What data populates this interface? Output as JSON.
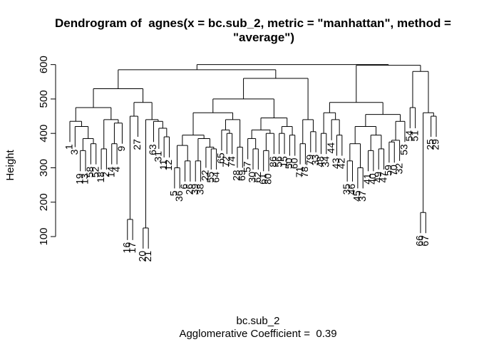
{
  "chart_data": {
    "type": "dendrogram",
    "title": [
      "Dendrogram of  agnes(x = bc.sub_2, metric = \"manhattan\", method =",
      "\"average\")"
    ],
    "x_label": "bc.sub_2",
    "subtitle": "Agglomerative Coefficient =  0.39",
    "y_label": "Height",
    "ylim": [
      40,
      620
    ],
    "yticks": [
      100,
      200,
      300,
      400,
      500,
      600
    ],
    "color": "#000000",
    "tree": {
      "height": 600,
      "children": [
        {
          "height": 585,
          "children": [
            {
              "height": 530,
              "children": [
                {
                  "height": 475,
                  "children": [
                    {
                      "height": 435,
                      "children": [
                        "1",
                        {
                          "height": 420,
                          "children": [
                            "3",
                            {
                              "height": 385,
                              "children": [
                                {
                                  "height": 350,
                                  "children": [
                                    "19",
                                    "13"
                                  ]
                                },
                                {
                                  "height": 370,
                                  "children": [
                                    "58",
                                    "52"
                                  ]
                                }
                              ]
                            }
                          ]
                        }
                      ]
                    },
                    {
                      "height": 440,
                      "children": [
                        {
                          "height": 355,
                          "children": [
                            "18",
                            "2"
                          ]
                        },
                        {
                          "height": 430,
                          "children": [
                            {
                              "height": 370,
                              "children": [
                                "14",
                                "4"
                              ]
                            },
                            "9"
                          ]
                        }
                      ]
                    }
                  ]
                },
                {
                  "height": 490,
                  "children": [
                    {
                      "height": 450,
                      "children": [
                        {
                          "height": 150,
                          "children": [
                            "16",
                            "17"
                          ]
                        },
                        "27"
                      ]
                    },
                    {
                      "height": 440,
                      "children": [
                        {
                          "height": 125,
                          "children": [
                            "20",
                            "21"
                          ]
                        },
                        {
                          "height": 435,
                          "children": [
                            "63",
                            {
                              "height": 415,
                              "children": [
                                "31",
                                {
                                  "height": 390,
                                  "children": [
                                    "11",
                                    "12"
                                  ]
                                }
                              ]
                            }
                          ]
                        }
                      ]
                    }
                  ]
                }
              ]
            },
            {
              "height": 560,
              "children": [
                {
                  "height": 500,
                  "children": [
                    {
                      "height": 460,
                      "children": [
                        {
                          "height": 395,
                          "children": [
                            {
                              "height": 365,
                              "children": [
                                {
                                  "height": 300,
                                  "children": [
                                    "5",
                                    "36"
                                  ]
                                },
                                {
                                  "height": 320,
                                  "children": [
                                    "6",
                                    "26"
                                  ]
                                }
                              ]
                            },
                            {
                              "height": 385,
                              "children": [
                                {
                                  "height": 320,
                                  "children": [
                                    "39",
                                    "38"
                                  ]
                                },
                                {
                                  "height": 360,
                                  "children": [
                                    "22",
                                    {
                                      "height": 355,
                                      "children": [
                                        "55",
                                        "64"
                                      ]
                                    }
                                  ]
                                }
                              ]
                            }
                          ]
                        },
                        {
                          "height": 440,
                          "children": [
                            {
                              "height": 410,
                              "children": [
                                "65",
                                {
                                  "height": 400,
                                  "children": [
                                    "72",
                                    "74"
                                  ]
                                }
                              ]
                            },
                            {
                              "height": 360,
                              "children": [
                                "28",
                                "69"
                              ]
                            }
                          ]
                        }
                      ]
                    },
                    {
                      "height": 445,
                      "children": [
                        {
                          "height": 410,
                          "children": [
                            {
                              "height": 385,
                              "children": [
                                "57",
                                {
                                  "height": 355,
                                  "children": [
                                    "30",
                                    "62"
                                  ]
                                }
                              ]
                            },
                            {
                              "height": 400,
                              "children": [
                                {
                                  "height": 350,
                                  "children": [
                                    "61",
                                    "80"
                                  ]
                                },
                                "86"
                              ]
                            }
                          ]
                        },
                        {
                          "height": 420,
                          "children": [
                            {
                              "height": 400,
                              "children": [
                                "56",
                                "15"
                              ]
                            },
                            {
                              "height": 395,
                              "children": [
                                "50",
                                "60"
                              ]
                            }
                          ]
                        }
                      ]
                    }
                  ]
                },
                {
                  "height": 440,
                  "children": [
                    {
                      "height": 370,
                      "children": [
                        "71",
                        "78"
                      ]
                    },
                    {
                      "height": 405,
                      "children": [
                        "79",
                        "33"
                      ]
                    }
                  ]
                }
              ]
            }
          ]
        },
        {
          "height": 598,
          "children": [
            {
              "height": 490,
              "children": [
                {
                  "height": 460,
                  "children": [
                    {
                      "height": 400,
                      "children": [
                        "48",
                        "34"
                      ]
                    },
                    {
                      "height": 440,
                      "children": [
                        "44",
                        {
                          "height": 395,
                          "children": [
                            "43",
                            "42"
                          ]
                        }
                      ]
                    }
                  ]
                },
                {
                  "height": 455,
                  "children": [
                    {
                      "height": 420,
                      "children": [
                        {
                          "height": 370,
                          "children": [
                            {
                              "height": 320,
                              "children": [
                                "35",
                                "46"
                              ]
                            },
                            {
                              "height": 300,
                              "children": [
                                "45",
                                "37"
                              ]
                            }
                          ]
                        },
                        {
                          "height": 395,
                          "children": [
                            {
                              "height": 350,
                              "children": [
                                "41",
                                "40"
                              ]
                            },
                            {
                              "height": 355,
                              "children": [
                                "49",
                                "47"
                              ]
                            }
                          ]
                        }
                      ]
                    },
                    {
                      "height": 435,
                      "children": [
                        {
                          "height": 380,
                          "children": [
                            {
                              "height": 375,
                              "children": [
                                "59",
                                "70"
                              ]
                            },
                            "32"
                          ]
                        },
                        "53"
                      ]
                    }
                  ]
                }
              ]
            },
            {
              "height": 580,
              "children": [
                {
                  "height": 475,
                  "children": [
                    "54",
                    "51"
                  ]
                },
                {
                  "height": 460,
                  "children": [
                    {
                      "height": 170,
                      "children": [
                        "66",
                        "67"
                      ]
                    },
                    {
                      "height": 450,
                      "children": [
                        "25",
                        "29"
                      ]
                    }
                  ]
                }
              ]
            }
          ]
        }
      ]
    }
  }
}
